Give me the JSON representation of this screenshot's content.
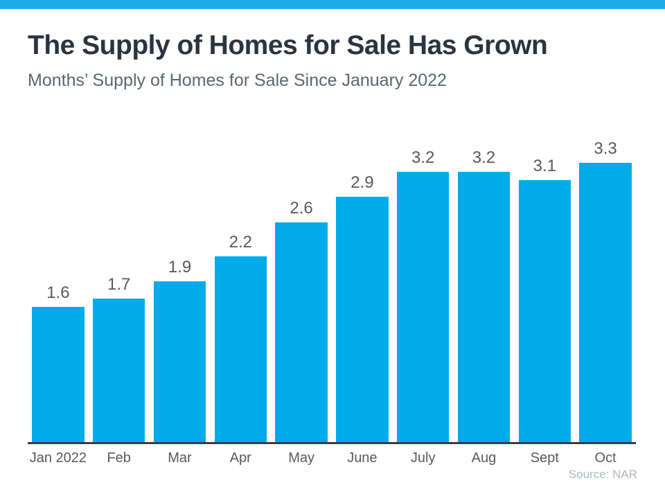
{
  "page": {
    "background": "#ffffff",
    "accent_color": "#00abea",
    "accent_strip_color": "#1aabe8"
  },
  "header": {
    "title": "The Supply of Homes for Sale Has Grown",
    "subtitle": "Months’ Supply of Homes for Sale Since January 2022"
  },
  "chart_data": {
    "type": "bar",
    "title": "The Supply of Homes for Sale Has Grown",
    "subtitle": "Months’ Supply of Homes for Sale Since January 2022",
    "categories": [
      "Jan 2022",
      "Feb",
      "Mar",
      "Apr",
      "May",
      "June",
      "July",
      "Aug",
      "Sept",
      "Oct"
    ],
    "values": [
      1.6,
      1.7,
      1.9,
      2.2,
      2.6,
      2.9,
      3.2,
      3.2,
      3.1,
      3.3
    ],
    "data_labels": [
      "1.6",
      "1.7",
      "1.9",
      "2.2",
      "2.6",
      "2.9",
      "3.2",
      "3.2",
      "3.1",
      "3.3"
    ],
    "xlabel": "",
    "ylabel": "",
    "ylim": [
      0,
      3.5
    ],
    "grid": false,
    "legend": false,
    "bar_color": "#00abea",
    "value_label_color": "#595959",
    "axis_line_color": "#3c3c3c"
  },
  "footer": {
    "source": "Source: NAR"
  }
}
